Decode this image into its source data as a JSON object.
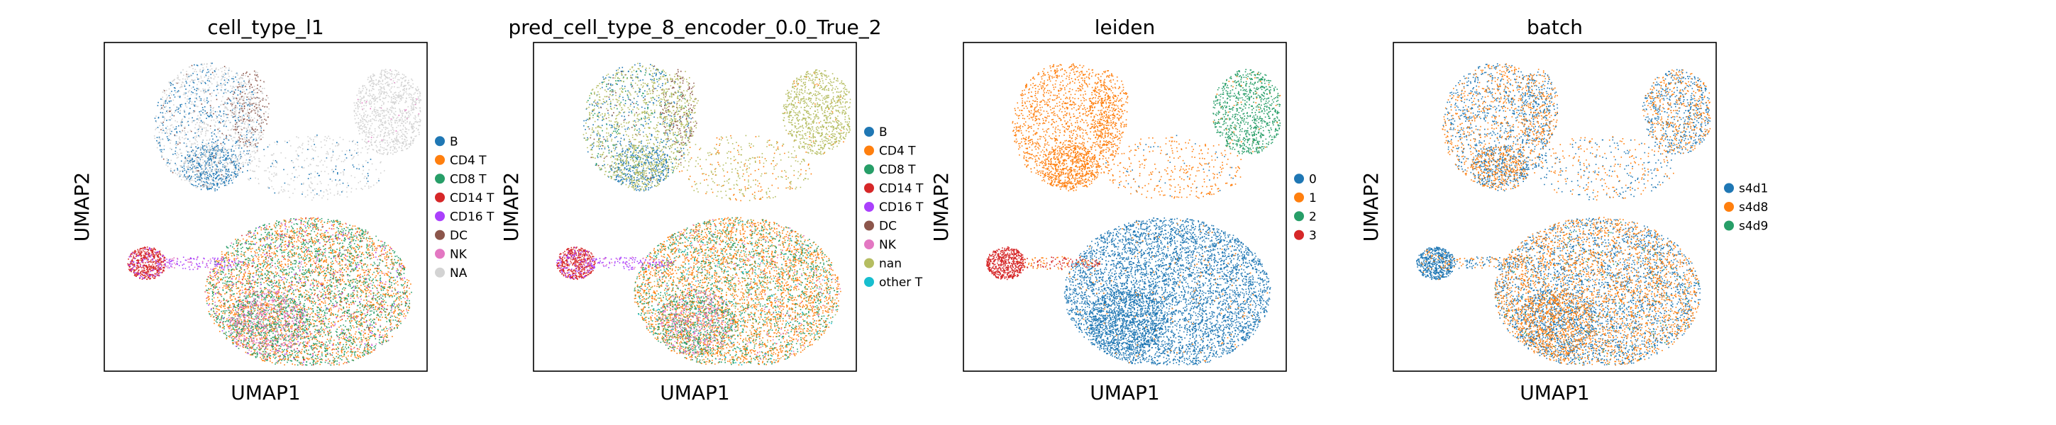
{
  "figure": {
    "background": "#ffffff"
  },
  "chart_data": [
    {
      "type": "scatter",
      "title": "cell_type_l1",
      "xlabel": "UMAP1",
      "ylabel": "UMAP2",
      "ticks": "none",
      "grid": false,
      "legend_position": "right",
      "categories": [
        {
          "name": "B",
          "color": "#1f77b4"
        },
        {
          "name": "CD4 T",
          "color": "#ff7f0e"
        },
        {
          "name": "CD8 T",
          "color": "#279e68"
        },
        {
          "name": "CD14 T",
          "color": "#d62728"
        },
        {
          "name": "CD16 T",
          "color": "#aa40fc"
        },
        {
          "name": "DC",
          "color": "#8c564b"
        },
        {
          "name": "NK",
          "color": "#e377c2"
        },
        {
          "name": "NA",
          "color": "#d3d3d3"
        }
      ]
    },
    {
      "type": "scatter",
      "title": "pred_cell_type_8_encoder_0.0_True_2",
      "xlabel": "UMAP1",
      "ylabel": "UMAP2",
      "ticks": "none",
      "grid": false,
      "legend_position": "right",
      "categories": [
        {
          "name": "B",
          "color": "#1f77b4"
        },
        {
          "name": "CD4 T",
          "color": "#ff7f0e"
        },
        {
          "name": "CD8 T",
          "color": "#279e68"
        },
        {
          "name": "CD14 T",
          "color": "#d62728"
        },
        {
          "name": "CD16 T",
          "color": "#aa40fc"
        },
        {
          "name": "DC",
          "color": "#8c564b"
        },
        {
          "name": "NK",
          "color": "#e377c2"
        },
        {
          "name": "nan",
          "color": "#b5bd61"
        },
        {
          "name": "other T",
          "color": "#17becf"
        }
      ]
    },
    {
      "type": "scatter",
      "title": "leiden",
      "xlabel": "UMAP1",
      "ylabel": "UMAP2",
      "ticks": "none",
      "grid": false,
      "legend_position": "right",
      "categories": [
        {
          "name": "0",
          "color": "#1f77b4"
        },
        {
          "name": "1",
          "color": "#ff7f0e"
        },
        {
          "name": "2",
          "color": "#279e68"
        },
        {
          "name": "3",
          "color": "#d62728"
        }
      ]
    },
    {
      "type": "scatter",
      "title": "batch",
      "xlabel": "UMAP1",
      "ylabel": "UMAP2",
      "ticks": "none",
      "grid": false,
      "legend_position": "right",
      "categories": [
        {
          "name": "s4d1",
          "color": "#1f77b4"
        },
        {
          "name": "s4d8",
          "color": "#ff7f0e"
        },
        {
          "name": "s4d9",
          "color": "#279e68"
        }
      ]
    }
  ]
}
